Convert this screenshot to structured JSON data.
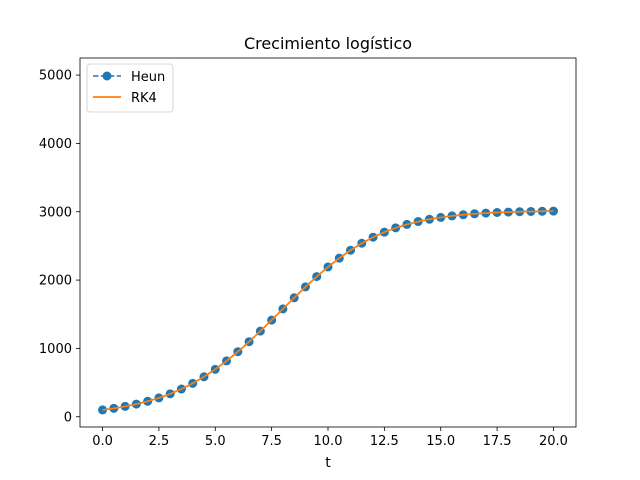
{
  "chart_data": {
    "type": "line",
    "title": "Crecimiento logístico",
    "xlabel": "t",
    "ylabel": "",
    "xlim": [
      -1.0,
      21.0
    ],
    "ylim": [
      -150,
      5250
    ],
    "xticks": [
      0.0,
      2.5,
      5.0,
      7.5,
      10.0,
      12.5,
      15.0,
      17.5,
      20.0
    ],
    "xtick_labels": [
      "0.0",
      "2.5",
      "5.0",
      "7.5",
      "10.0",
      "12.5",
      "15.0",
      "17.5",
      "20.0"
    ],
    "yticks": [
      0,
      1000,
      2000,
      3000,
      4000,
      5000
    ],
    "ytick_labels": [
      "0",
      "1000",
      "2000",
      "3000",
      "4000",
      "5000"
    ],
    "grid": false,
    "legend_position": "top-left",
    "x": [
      0.0,
      0.5,
      1.0,
      1.5,
      2.0,
      2.5,
      3.0,
      3.5,
      4.0,
      4.5,
      5.0,
      5.5,
      6.0,
      6.5,
      7.0,
      7.5,
      8.0,
      8.5,
      9.0,
      9.5,
      10.0,
      10.5,
      11.0,
      11.5,
      12.0,
      12.5,
      13.0,
      13.5,
      14.0,
      14.5,
      15.0,
      15.5,
      16.0,
      16.5,
      17.0,
      17.5,
      18.0,
      18.5,
      19.0,
      19.5,
      20.0
    ],
    "series": [
      {
        "name": "Heun",
        "color": "#1f77b4",
        "style": "dashed-with-circle-markers",
        "values": [
          100,
          123,
          151,
          185,
          226,
          276,
          335,
          406,
          489,
          585,
          694,
          817,
          952,
          1098,
          1253,
          1414,
          1578,
          1741,
          1900,
          2051,
          2192,
          2321,
          2437,
          2539,
          2627,
          2701,
          2764,
          2815,
          2857,
          2890,
          2917,
          2939,
          2956,
          2970,
          2980,
          2989,
          2995,
          3000,
          3004,
          3007,
          3010
        ]
      },
      {
        "name": "RK4",
        "color": "#ff7f0e",
        "style": "solid",
        "values": [
          100,
          123,
          151,
          185,
          226,
          276,
          335,
          406,
          489,
          585,
          694,
          817,
          952,
          1098,
          1253,
          1414,
          1578,
          1741,
          1900,
          2051,
          2192,
          2321,
          2437,
          2539,
          2627,
          2701,
          2764,
          2815,
          2857,
          2890,
          2917,
          2939,
          2956,
          2970,
          2980,
          2989,
          2995,
          3000,
          3004,
          3007,
          3010
        ]
      }
    ]
  }
}
